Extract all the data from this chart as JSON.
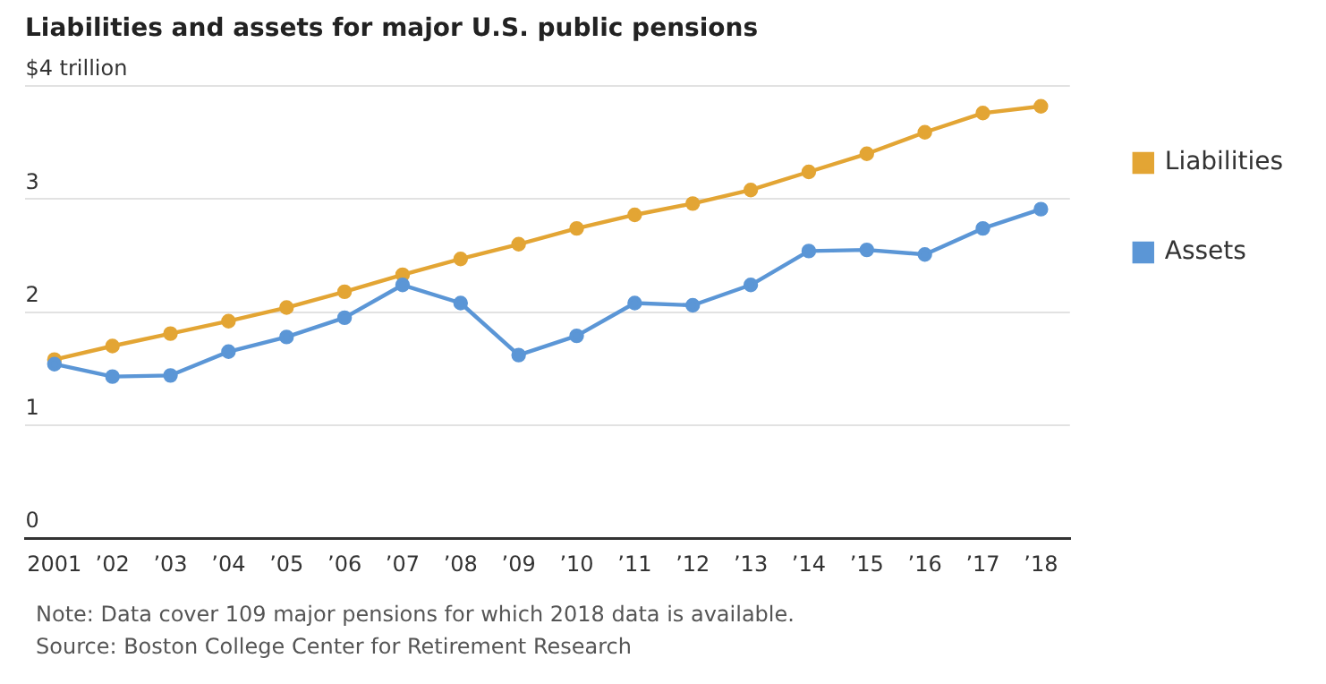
{
  "chart_data": {
    "type": "line",
    "title": "Liabilities and assets for major U.S. public pensions",
    "categories": [
      "2001",
      "’02",
      "’03",
      "’04",
      "’05",
      "’06",
      "’07",
      "’08",
      "’09",
      "’10",
      "’11",
      "’12",
      "’13",
      "’14",
      "’15",
      "’16",
      "’17",
      "’18"
    ],
    "series": [
      {
        "name": "Liabilities",
        "color": "#e3a534",
        "values": [
          1.58,
          1.7,
          1.81,
          1.92,
          2.04,
          2.18,
          2.33,
          2.47,
          2.6,
          2.74,
          2.86,
          2.96,
          3.08,
          3.24,
          3.4,
          3.59,
          3.76,
          3.82
        ]
      },
      {
        "name": "Assets",
        "color": "#5b96d6",
        "values": [
          1.54,
          1.43,
          1.44,
          1.65,
          1.78,
          1.95,
          2.24,
          2.08,
          1.62,
          1.79,
          2.08,
          2.06,
          2.24,
          2.54,
          2.55,
          2.51,
          2.74,
          2.91
        ]
      }
    ],
    "ylim": [
      0,
      4
    ],
    "yticks": [
      0,
      1,
      2,
      3,
      {
        "value": 4,
        "label": "$4 trillion"
      }
    ],
    "grid": "y",
    "legend": "right",
    "marker": "circle",
    "line_style": "solid",
    "annotations": [
      "Note: Data cover 109 major pensions for which 2018 data is available.",
      "Source: Boston College Center for Retirement Research"
    ]
  }
}
